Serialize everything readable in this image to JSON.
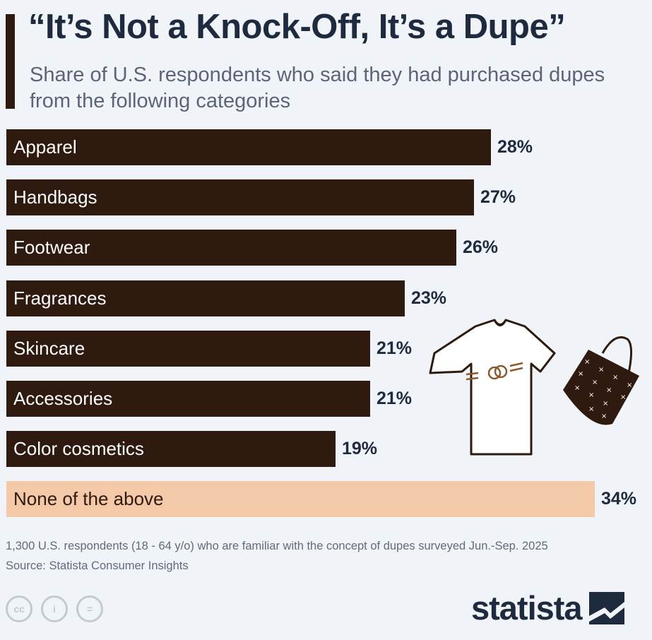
{
  "header": {
    "title": "“It’s Not a Knock-Off, It’s a Dupe”",
    "subtitle": "Share of U.S. respondents who said they had purchased dupes from the following categories"
  },
  "chart_data": {
    "type": "bar",
    "orientation": "horizontal",
    "categories": [
      "Apparel",
      "Handbags",
      "Footwear",
      "Fragrances",
      "Skincare",
      "Accessories",
      "Color cosmetics",
      "None of the above"
    ],
    "values": [
      28,
      27,
      26,
      23,
      21,
      21,
      19,
      34
    ],
    "value_labels": [
      "28%",
      "27%",
      "26%",
      "23%",
      "21%",
      "21%",
      "19%",
      "34%"
    ],
    "unit": "%",
    "colors": {
      "bar": "#2e1a0f",
      "highlight_bar": "#f3c9a7"
    },
    "highlight_index": 7
  },
  "footer": {
    "note": "1,300 U.S. respondents (18 - 64 y/o) who are familiar with the concept of dupes surveyed Jun.-Sep. 2025",
    "source": "Source: Statista Consumer Insights",
    "brand": "statista",
    "license_icons": [
      "cc-icon",
      "attribution-icon",
      "no-derivatives-icon"
    ],
    "license_glyphs": [
      "cc",
      "i",
      "="
    ]
  }
}
